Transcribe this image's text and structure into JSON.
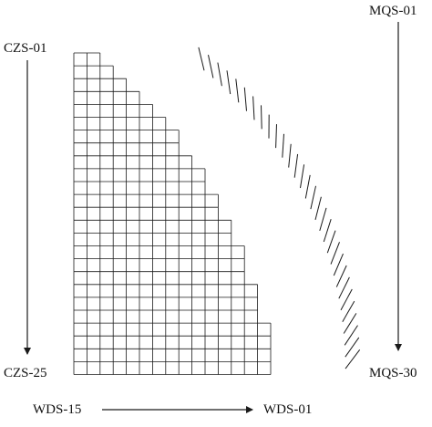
{
  "labels": {
    "czs_start": "CZS-01",
    "czs_end": "CZS-25",
    "mqs_start": "MQS-01",
    "mqs_end": "MQS-30",
    "wds_start": "WDS-15",
    "wds_end": "WDS-01"
  },
  "grid": {
    "columns": 15,
    "rows": 25,
    "row_widths": [
      2,
      3,
      4,
      5,
      6,
      7,
      8,
      8,
      9,
      10,
      10,
      11,
      11,
      12,
      12,
      13,
      13,
      13,
      14,
      14,
      14,
      15,
      15,
      15,
      15
    ]
  },
  "hatch": {
    "count": 30
  },
  "colors": {
    "line": "#1a1a1a",
    "background": "#ffffff"
  }
}
